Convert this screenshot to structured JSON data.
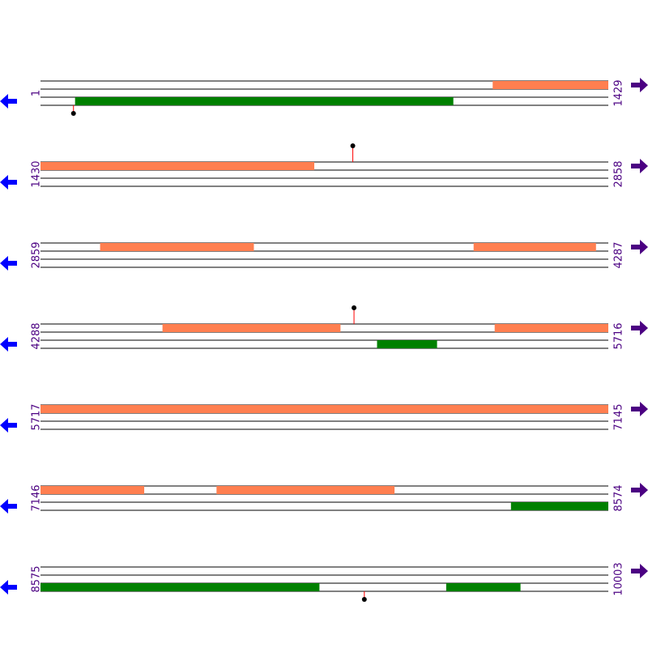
{
  "colors": {
    "line": "#000000",
    "forward_feature": "#ff7f50",
    "reverse_feature": "#008000",
    "marker": "#000000",
    "marker_stem": "#ff0000",
    "reverse_arrow": "#0000ff",
    "forward_arrow": "#4b0082",
    "label": "#4b0082"
  },
  "icons": {
    "left": "left-arrow-icon",
    "right": "right-arrow-icon"
  },
  "rows": [
    {
      "start_label": "1",
      "end_label": "1429",
      "start": 1,
      "end": 1429,
      "features": [
        {
          "track": 0,
          "start": 1139,
          "end": 1429
        },
        {
          "track": 2,
          "start": 88,
          "end": 1039
        }
      ],
      "markers": [
        {
          "position": 84,
          "side": "below"
        }
      ]
    },
    {
      "start_label": "1430",
      "end_label": "2858",
      "start": 1430,
      "end": 2858,
      "features": [
        {
          "track": 0,
          "start": 1430,
          "end": 2118
        }
      ],
      "markers": [
        {
          "position": 2216,
          "side": "above"
        }
      ]
    },
    {
      "start_label": "2859",
      "end_label": "4287",
      "start": 2859,
      "end": 4287,
      "features": [
        {
          "track": 0,
          "start": 3009,
          "end": 3395
        },
        {
          "track": 0,
          "start": 3949,
          "end": 4256
        }
      ],
      "markers": []
    },
    {
      "start_label": "4288",
      "end_label": "5716",
      "start": 4288,
      "end": 5716,
      "features": [
        {
          "track": 0,
          "start": 4595,
          "end": 5042
        },
        {
          "track": 0,
          "start": 5431,
          "end": 5716
        },
        {
          "track": 2,
          "start": 5135,
          "end": 5285
        }
      ],
      "markers": [
        {
          "position": 5077,
          "side": "above"
        }
      ]
    },
    {
      "start_label": "5717",
      "end_label": "7145",
      "start": 5717,
      "end": 7145,
      "features": [
        {
          "track": 0,
          "start": 5717,
          "end": 7145
        }
      ],
      "markers": []
    },
    {
      "start_label": "7146",
      "end_label": "8574",
      "start": 7146,
      "end": 8574,
      "features": [
        {
          "track": 0,
          "start": 7146,
          "end": 7406
        },
        {
          "track": 0,
          "start": 7589,
          "end": 8036
        },
        {
          "track": 2,
          "start": 8330,
          "end": 8574
        }
      ],
      "markers": []
    },
    {
      "start_label": "8575",
      "end_label": "10003",
      "start": 8575,
      "end": 10003,
      "features": [
        {
          "track": 2,
          "start": 8575,
          "end": 9276
        },
        {
          "track": 2,
          "start": 9596,
          "end": 9782
        }
      ],
      "markers": [
        {
          "position": 9390,
          "side": "below"
        }
      ]
    }
  ]
}
